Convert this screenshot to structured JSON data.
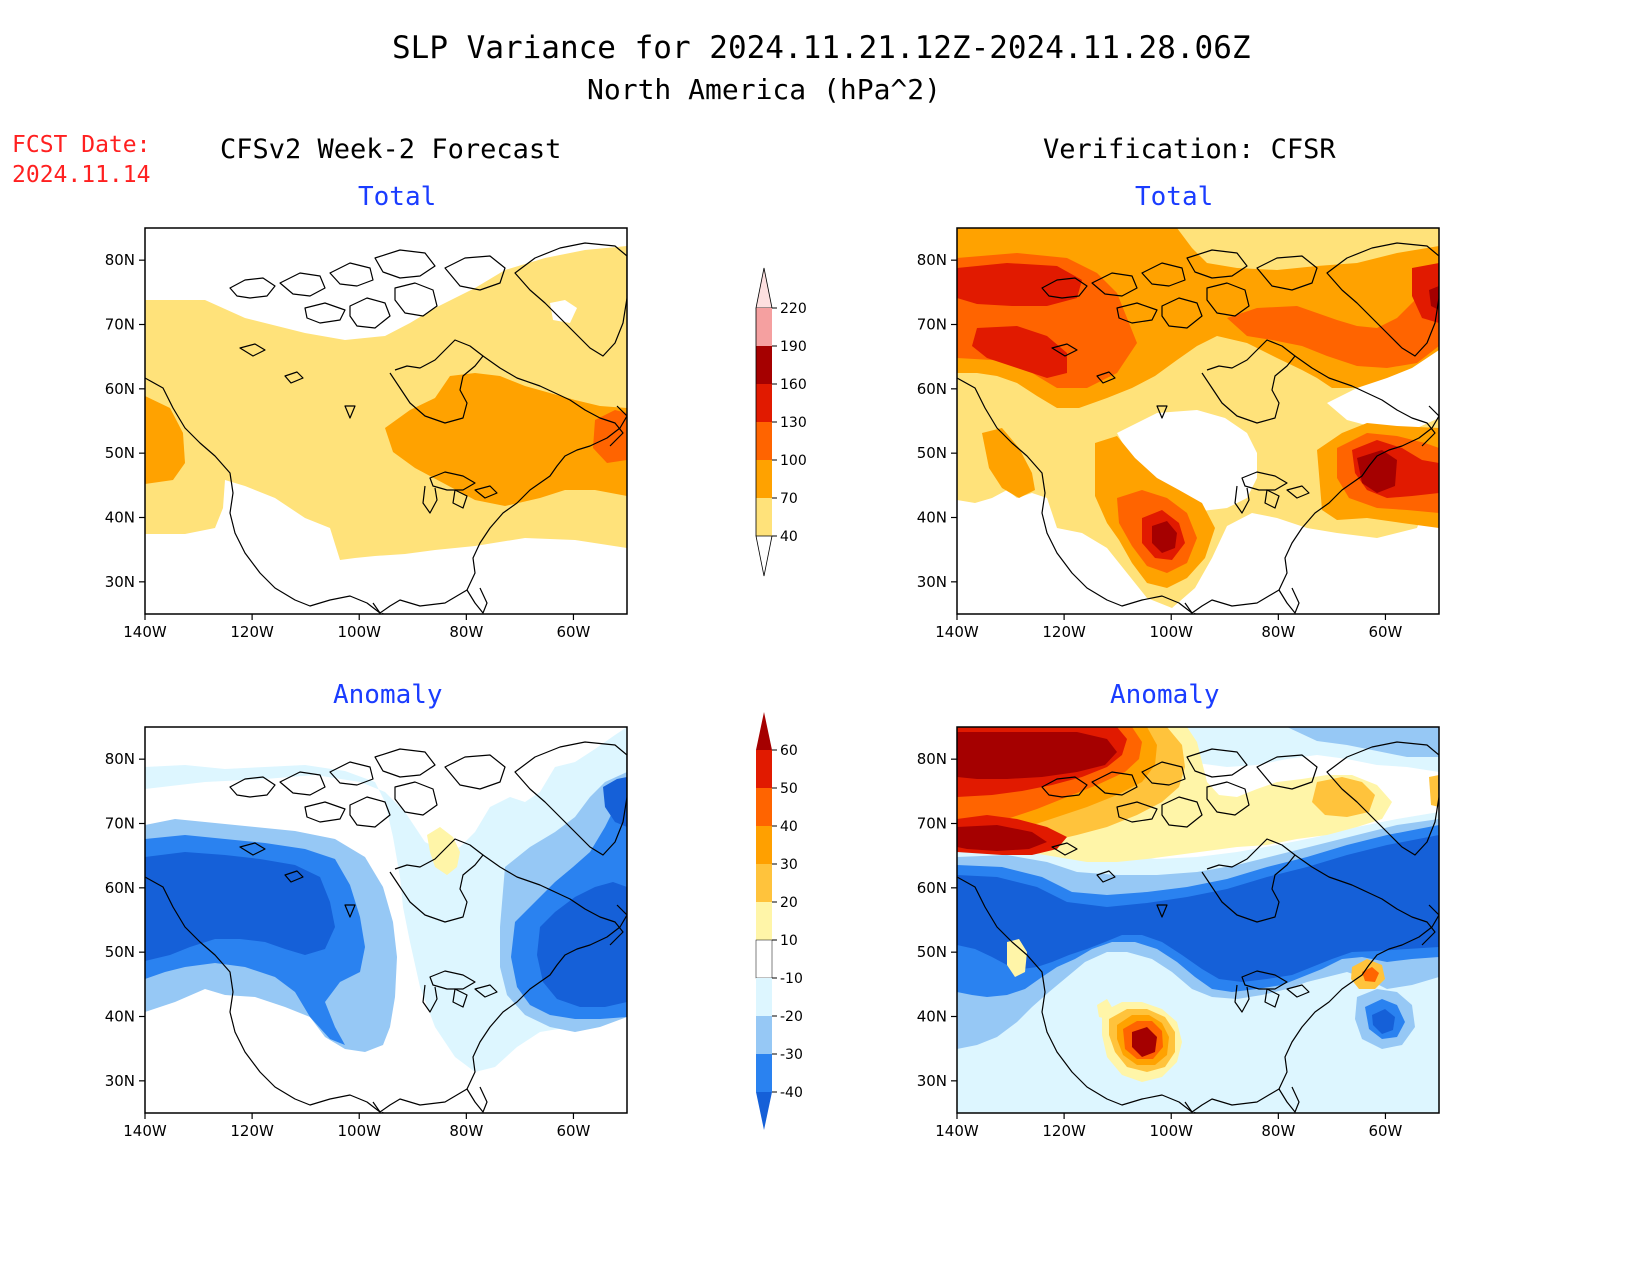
{
  "header": {
    "title": "SLP Variance for 2024.11.21.12Z-2024.11.28.06Z",
    "subtitle": "North America (hPa^2)"
  },
  "fcst_date": {
    "label": "FCST Date:",
    "value": "2024.11.14"
  },
  "columns": {
    "left": "CFSv2 Week-2 Forecast",
    "right": "Verification: CFSR"
  },
  "panels": {
    "top_left": "Total",
    "top_right": "Total",
    "bottom_left": "Anomaly",
    "bottom_right": "Anomaly"
  },
  "axes": {
    "lat_labels": [
      "80N",
      "70N",
      "60N",
      "50N",
      "40N",
      "30N"
    ],
    "lat_values": [
      80,
      70,
      60,
      50,
      40,
      30
    ],
    "lon_labels": [
      "140W",
      "120W",
      "100W",
      "80W",
      "60W"
    ],
    "lon_values": [
      -140,
      -120,
      -100,
      -80,
      -60
    ],
    "lon_range": [
      -140,
      -50
    ],
    "lat_range": [
      25,
      85
    ]
  },
  "colorbars": {
    "total": {
      "levels": [
        "40",
        "70",
        "100",
        "130",
        "160",
        "190",
        "220"
      ],
      "colors": [
        "#ffe27a",
        "#ffa200",
        "#ff6400",
        "#e11a00",
        "#a50000",
        "#f5a0a0",
        "#fde0e0"
      ]
    },
    "anomaly": {
      "levels": [
        "-40",
        "-30",
        "-20",
        "-10",
        "10",
        "20",
        "30",
        "40",
        "50",
        "60"
      ],
      "colors": [
        "#1560d8",
        "#2a82f0",
        "#96c8f5",
        "#ddf6ff",
        "#ffffff",
        "#fff5a8",
        "#ffc33c",
        "#ffa000",
        "#ff6400",
        "#e11a00",
        "#a50000"
      ]
    }
  }
}
